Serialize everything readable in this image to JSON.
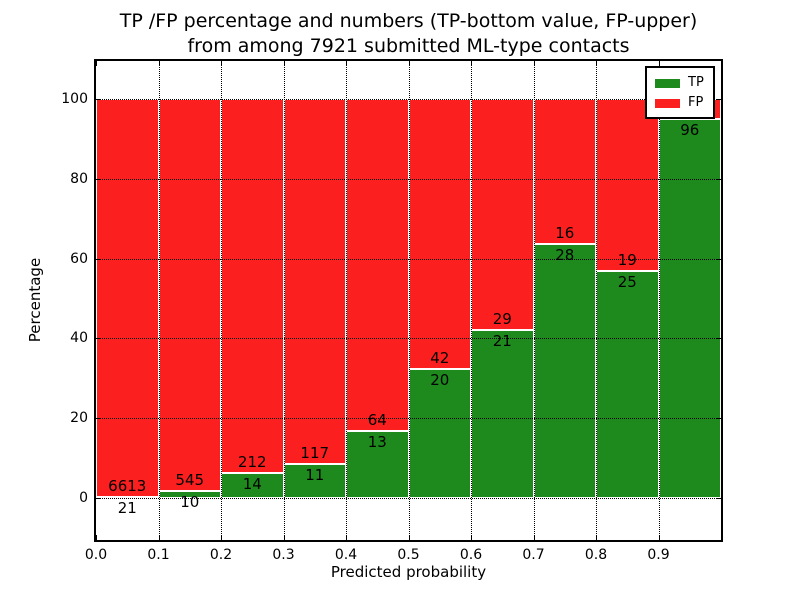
{
  "title": {
    "line1": "TP /FP percentage and numbers (TP-bottom value, FP-upper)",
    "line2": "from among 7921 submitted ML-type contacts"
  },
  "axes": {
    "xlabel": "Predicted probability",
    "ylabel": "Percentage"
  },
  "legend": {
    "items": [
      {
        "label": "TP",
        "color": "#1e8a1e"
      },
      {
        "label": "FP",
        "color": "#fb1f1f"
      }
    ]
  },
  "colors": {
    "tp_green": "#1e8a1e",
    "fp_red": "#fb1f1f",
    "bar_edge": "#ffffff",
    "grid": "#000000"
  },
  "chart_data": {
    "type": "bar",
    "subtype": "stacked-percentage-histogram",
    "title": "TP /FP percentage and numbers (TP-bottom value, FP-upper) from among 7921 submitted ML-type contacts",
    "xlabel": "Predicted probability",
    "ylabel": "Percentage",
    "xlim": [
      0.0,
      1.0
    ],
    "ylim": [
      -10.5,
      109.5
    ],
    "grid": true,
    "legend_position": "upper right",
    "bin_width": 0.1,
    "x_tick_labels": [
      "0.0",
      "0.1",
      "0.2",
      "0.3",
      "0.4",
      "0.5",
      "0.6",
      "0.7",
      "0.8",
      "0.9"
    ],
    "y_ticks": [
      0,
      20,
      40,
      60,
      80,
      100
    ],
    "series": [
      {
        "name": "TP",
        "color": "#1e8a1e",
        "counts": [
          21,
          10,
          14,
          11,
          13,
          20,
          21,
          28,
          25,
          96
        ],
        "pct": [
          0.32,
          1.8,
          6.19,
          8.59,
          16.88,
          32.26,
          42.0,
          63.64,
          56.82,
          95.05
        ]
      },
      {
        "name": "FP",
        "color": "#fb1f1f",
        "counts": [
          6613,
          545,
          212,
          117,
          64,
          42,
          29,
          16,
          19,
          null
        ],
        "pct": [
          99.68,
          98.2,
          93.81,
          91.41,
          83.12,
          67.74,
          58.0,
          36.36,
          43.18,
          4.95
        ]
      }
    ],
    "bar_value_labels": {
      "tp": [
        "21",
        "10",
        "14",
        "11",
        "13",
        "20",
        "21",
        "28",
        "25",
        "96"
      ],
      "fp": [
        "6613",
        "545",
        "212",
        "117",
        "64",
        "42",
        "29",
        "16",
        "19",
        ""
      ]
    }
  }
}
